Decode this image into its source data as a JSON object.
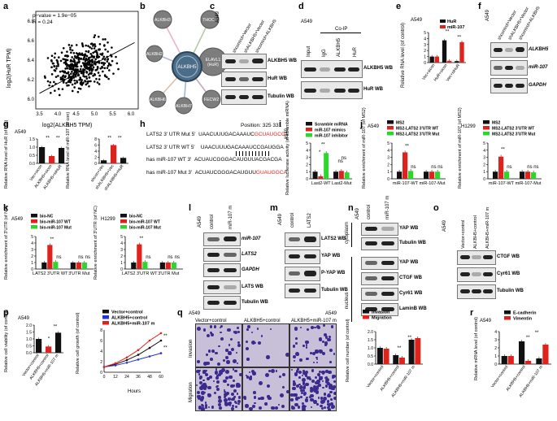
{
  "panels": {
    "a": {
      "letter": "a",
      "stat": "p−value = 1.9e−05",
      "r": "R = 0.24",
      "xlabel": "log2(ALKBH5 TPM)",
      "ylabel": "log2(HuR TPM)",
      "xticks": [
        "3.5",
        "4.0",
        "4.5",
        "5.0",
        "5.5",
        "6.0"
      ],
      "yticks": [
        "6.8",
        "6.6",
        "6.4",
        "6.2",
        "6.0"
      ]
    },
    "b": {
      "letter": "b",
      "center": "ALKBH5",
      "nodes": [
        "ALKBH3",
        "THOC7",
        "ALKBH2",
        "ELAVL1 (HuR)",
        "ALKBH6",
        "ALKBH7",
        "FECW2"
      ]
    },
    "c": {
      "letter": "c",
      "cell": "A549",
      "lanes": [
        "shcontrol+Vector",
        "shALKBH5+Vector",
        "shcontrol+ALKBH5"
      ],
      "rows": [
        "ALKBH5 WB",
        "HuR WB",
        "Tubulin WB"
      ]
    },
    "d": {
      "letter": "d",
      "cell": "A549",
      "coip": "Co-IP",
      "lanes": [
        "Input",
        "IgG",
        "ALKBH5",
        "HuR"
      ],
      "rows": [
        "ALKBH5 WB",
        "HuR WB"
      ]
    },
    "e": {
      "letter": "e",
      "cell": "A549",
      "legend": [
        "HuR",
        "miR-107"
      ],
      "ylabel": "Relative RNA level (of control)",
      "groups": [
        "Vec+sicon",
        "HuR+sicon",
        "Vec+siHuR"
      ],
      "yticks": [
        "0",
        "1",
        "2",
        "3",
        "4",
        "5"
      ],
      "sig": [
        "**",
        "**"
      ]
    },
    "f": {
      "letter": "f",
      "cell": "A549",
      "lanes": [
        "shcontrol+Vector",
        "shALKBH5+Vector",
        "shcontrol+ALKBH5"
      ],
      "rows": [
        "ALKBH5",
        "miR-107",
        "GAPDH"
      ]
    },
    "g": {
      "letter": "g",
      "cell": "A549",
      "ylabel1": "Relative RNA level of HuR (of con)",
      "ylabel2": "Relative RNA level of miR-107 (of con)",
      "groups1": [
        "Vec+sicon",
        "ALKBH5+sicon",
        "ALKBH5+siHuR"
      ],
      "groups2": [
        "shcon+Vec",
        "shALKBH5+Vec",
        "shALKBH5+HuR"
      ],
      "yticks1": [
        "0.0",
        "0.5",
        "1.0",
        "1.5"
      ],
      "yticks2": [
        "0",
        "2",
        "4",
        "6",
        "8"
      ],
      "sig": [
        "**",
        "**",
        "**",
        "**"
      ]
    },
    "h": {
      "letter": "h",
      "position": "Position: 325      331",
      "seqs": [
        {
          "label": "LATS2 3' UTR Mut 5'",
          "seq": "UAACUUUGACAAAUC",
          "seqred": "GCUAUGCG"
        },
        {
          "label": "LATS2 3' UTR WT 5'",
          "seq": "UAACUUUGACAAAUCCGAUGGA"
        },
        {
          "label": "has miR-107 WT 3'",
          "seq": "ACUAUCGGGACAUGUUACGACGA"
        },
        {
          "label": "has miR-107 Mut 3'",
          "seq": "ACUAUCGGGACAUGUU",
          "seqred": "GUAUGGCA"
        }
      ]
    },
    "i": {
      "letter": "i",
      "cell": "A549",
      "legend": [
        "Scramble miRNA",
        "miR-107 mimics",
        "miR-107 inhibitor"
      ],
      "ylabel": "Relative luciferase activity (of scramble miRNA)",
      "groups": [
        "Last2-WT",
        "Last2-Mut"
      ],
      "yticks": [
        "0",
        "1",
        "2",
        "3",
        "4",
        "5"
      ],
      "sig": [
        "*",
        "**",
        "ns",
        "ns"
      ]
    },
    "j": {
      "letter": "j",
      "cells": [
        "A549",
        "H1299"
      ],
      "legend": [
        "MS2",
        "MS2-LATS2 3'UTR WT",
        "MS2-LATS2 3'UTR Mut"
      ],
      "ylabel": "Relative enrichment of miR-107 (of MS2)",
      "groups": [
        "miR-107-WT",
        "miR-107-Mut"
      ],
      "yticks": [
        "0",
        "1",
        "2",
        "3",
        "4",
        "5"
      ],
      "sig": [
        "**",
        "ns",
        "ns",
        "ns"
      ]
    },
    "k": {
      "letter": "k",
      "cells": [
        "A549",
        "H1299"
      ],
      "legend": [
        "bio-NC",
        "bio-miR-107 WT",
        "bio-miR-107 Mut"
      ],
      "ylabel": "Relative enrichment of 3'UTR (of NC)",
      "groups": [
        "LATS2 3'UTR WT",
        "3'UTR Mut"
      ],
      "yticks": [
        "0",
        "1",
        "2",
        "3",
        "4",
        "5"
      ],
      "sig": [
        "**",
        "ns",
        "ns",
        "ns"
      ]
    },
    "l": {
      "letter": "l",
      "cell": "A549",
      "lanes": [
        "control",
        "miR-107 m"
      ],
      "rows": [
        "miR-107",
        "LATS2",
        "GAPDH",
        "LATS WB",
        "Tubulin WB"
      ]
    },
    "m": {
      "letter": "m",
      "cell": "A549",
      "lanes": [
        "control",
        "LATS2"
      ],
      "rows": [
        "LATS2 WB",
        "YAP WB",
        "P-YAP WB",
        "Tubulin WB"
      ]
    },
    "n": {
      "letter": "n",
      "cell": "A549",
      "lanes": [
        "control",
        "miR-107 m"
      ],
      "compartments": [
        "cytoplasm",
        "nucleus"
      ],
      "rows": [
        "YAP WB",
        "Tubulin WB",
        "YAP WB",
        "CTGF WB",
        "Cyr61 WB",
        "LaminB WB"
      ]
    },
    "o": {
      "letter": "o",
      "cell": "A549",
      "lanes": [
        "Vector+control",
        "ALKBH5+control",
        "ALKBH5+miR-107 m"
      ],
      "rows": [
        "CTGF WB",
        "Cyr61 WB",
        "Tubulin WB"
      ]
    },
    "p": {
      "letter": "p",
      "cell": "A549",
      "ylabel1": "Relative cell viability (of control)",
      "groups1": [
        "Vector+control",
        "ALKBH5+control",
        "ALKBH5+miR-107 m"
      ],
      "yticks1": [
        "0.0",
        "0.5",
        "1.0",
        "1.5",
        "2.0"
      ],
      "sig1": [
        "*",
        "**"
      ],
      "legend2": [
        "Vector+control",
        "ALKBH5+control",
        "ALKBH5+miR-107 m"
      ],
      "ylabel2": "Relative cell growth (of control)",
      "xlabel2": "Hours",
      "xticks2": [
        "0",
        "12",
        "24",
        "36",
        "48",
        "60"
      ],
      "yticks2": [
        "0",
        "2",
        "4",
        "6",
        "8"
      ],
      "sig2": [
        "**",
        "**"
      ]
    },
    "q": {
      "letter": "q",
      "cell": "A549",
      "cols": [
        "Vector+control",
        "ALKBH5+control",
        "ALKBH5+miR-107 m"
      ],
      "rows": [
        "Invasion",
        "Migration"
      ],
      "legend": [
        "Invasion",
        "Migration"
      ],
      "ylabel": "Relative cell number (of control)",
      "yticks": [
        "0.0",
        "0.5",
        "1.0",
        "1.5",
        "2.0"
      ],
      "sig": [
        "**",
        "**"
      ],
      "groups": [
        "Vector+control",
        "ALKBH5+control",
        "ALKBH5+miR-107 m"
      ]
    },
    "r": {
      "letter": "r",
      "cell": "A549",
      "legend": [
        "E-cadherin",
        "Vimentin"
      ],
      "ylabel": "Relative mRNA level (of control)",
      "groups": [
        "Vector+control",
        "ALKBH5+control",
        "ALKBH5+miR-107 m"
      ],
      "yticks": [
        "0",
        "1",
        "2",
        "3",
        "4"
      ],
      "sig": [
        "**",
        "**"
      ]
    }
  },
  "chart_data": [
    {
      "type": "scatter",
      "panel": "a",
      "xlabel": "log2(ALKBH5 TPM)",
      "ylabel": "log2(HuR TPM)",
      "xlim": [
        3.4,
        6.2
      ],
      "ylim": [
        5.9,
        6.9
      ],
      "fit": {
        "r": 0.24
      }
    },
    {
      "type": "bar",
      "panel": "e",
      "categories": [
        "Vec+sicon",
        "HuR+sicon",
        "Vec+siHuR"
      ],
      "series": [
        {
          "name": "HuR",
          "values": [
            1.0,
            3.7,
            0.25
          ]
        },
        {
          "name": "miR-107",
          "values": [
            1.0,
            0.3,
            3.4
          ]
        }
      ],
      "ylim": [
        0,
        5
      ]
    },
    {
      "type": "bar",
      "panel": "g1",
      "categories": [
        "Vec+sicon",
        "ALKBH5+sicon",
        "ALKBH5+siHuR"
      ],
      "values": [
        1.0,
        0.45,
        0.95
      ],
      "ylim": [
        0,
        1.5
      ]
    },
    {
      "type": "bar",
      "panel": "g2",
      "categories": [
        "shcon+Vec",
        "shALKBH5+Vec",
        "shALKBH5+HuR"
      ],
      "values": [
        1.0,
        6.0,
        1.8
      ],
      "ylim": [
        0,
        8
      ]
    },
    {
      "type": "bar",
      "panel": "i",
      "categories": [
        "Last2-WT",
        "Last2-Mut"
      ],
      "series": [
        {
          "name": "Scramble miRNA",
          "values": [
            1.0,
            1.0
          ]
        },
        {
          "name": "miR-107 mimics",
          "values": [
            0.35,
            1.1
          ]
        },
        {
          "name": "miR-107 inhibitor",
          "values": [
            3.6,
            0.9
          ]
        }
      ],
      "ylim": [
        0,
        5
      ]
    },
    {
      "type": "bar",
      "panel": "j1",
      "categories": [
        "miR-107-WT",
        "miR-107-Mut"
      ],
      "series": [
        {
          "name": "MS2",
          "values": [
            1.0,
            1.0
          ]
        },
        {
          "name": "MS2-LATS2 3'UTR WT",
          "values": [
            3.7,
            1.0
          ]
        },
        {
          "name": "MS2-LATS2 3'UTR Mut",
          "values": [
            1.1,
            1.0
          ]
        }
      ],
      "ylim": [
        0,
        5
      ]
    },
    {
      "type": "bar",
      "panel": "j2",
      "categories": [
        "miR-107-WT",
        "miR-107-Mut"
      ],
      "series": [
        {
          "name": "MS2",
          "values": [
            1.0,
            1.0
          ]
        },
        {
          "name": "MS2-LATS2 3'UTR WT",
          "values": [
            3.1,
            1.0
          ]
        },
        {
          "name": "MS2-LATS2 3'UTR Mut",
          "values": [
            1.0,
            0.9
          ]
        }
      ],
      "ylim": [
        0,
        5
      ]
    },
    {
      "type": "bar",
      "panel": "k1",
      "categories": [
        "LATS2 3'UTR WT",
        "3'UTR Mut"
      ],
      "series": [
        {
          "name": "bio-NC",
          "values": [
            1.0,
            1.0
          ]
        },
        {
          "name": "bio-miR-107 WT",
          "values": [
            3.7,
            1.0
          ]
        },
        {
          "name": "bio-miR-107 Mut",
          "values": [
            1.1,
            1.0
          ]
        }
      ],
      "ylim": [
        0,
        5
      ]
    },
    {
      "type": "bar",
      "panel": "k2",
      "categories": [
        "LATS2 3'UTR WT",
        "3'UTR Mut"
      ],
      "series": [
        {
          "name": "bio-NC",
          "values": [
            1.0,
            1.0
          ]
        },
        {
          "name": "bio-miR-107 WT",
          "values": [
            3.8,
            1.0
          ]
        },
        {
          "name": "bio-miR-107 Mut",
          "values": [
            1.1,
            1.0
          ]
        }
      ],
      "ylim": [
        0,
        5
      ]
    },
    {
      "type": "bar",
      "panel": "p1",
      "categories": [
        "Vector+control",
        "ALKBH5+control",
        "ALKBH5+miR-107 m"
      ],
      "values": [
        1.0,
        0.45,
        1.45
      ],
      "ylim": [
        0,
        2
      ]
    },
    {
      "type": "line",
      "panel": "p2",
      "x": [
        0,
        12,
        24,
        36,
        48,
        60
      ],
      "series": [
        {
          "name": "Vector+control",
          "values": [
            1.0,
            1.5,
            2.3,
            3.3,
            4.6,
            6.0
          ]
        },
        {
          "name": "ALKBH5+control",
          "values": [
            1.0,
            1.3,
            1.8,
            2.4,
            3.0,
            3.6
          ]
        },
        {
          "name": "ALKBH5+miR-107 m",
          "values": [
            1.0,
            1.7,
            2.8,
            4.2,
            6.0,
            7.4
          ]
        }
      ],
      "ylim": [
        0,
        8
      ]
    },
    {
      "type": "bar",
      "panel": "q",
      "categories": [
        "Vector+control",
        "ALKBH5+control",
        "ALKBH5+miR-107 m"
      ],
      "series": [
        {
          "name": "Invasion",
          "values": [
            1.0,
            0.55,
            1.5
          ]
        },
        {
          "name": "Migration",
          "values": [
            0.95,
            0.4,
            1.6
          ]
        }
      ],
      "ylim": [
        0,
        2
      ]
    },
    {
      "type": "bar",
      "panel": "r",
      "categories": [
        "Vector+control",
        "ALKBH5+control",
        "ALKBH5+miR-107 m"
      ],
      "series": [
        {
          "name": "E-cadherin",
          "values": [
            1.0,
            2.8,
            0.7
          ]
        },
        {
          "name": "Vimentin",
          "values": [
            1.0,
            0.4,
            2.4
          ]
        }
      ],
      "ylim": [
        0,
        4
      ]
    }
  ]
}
